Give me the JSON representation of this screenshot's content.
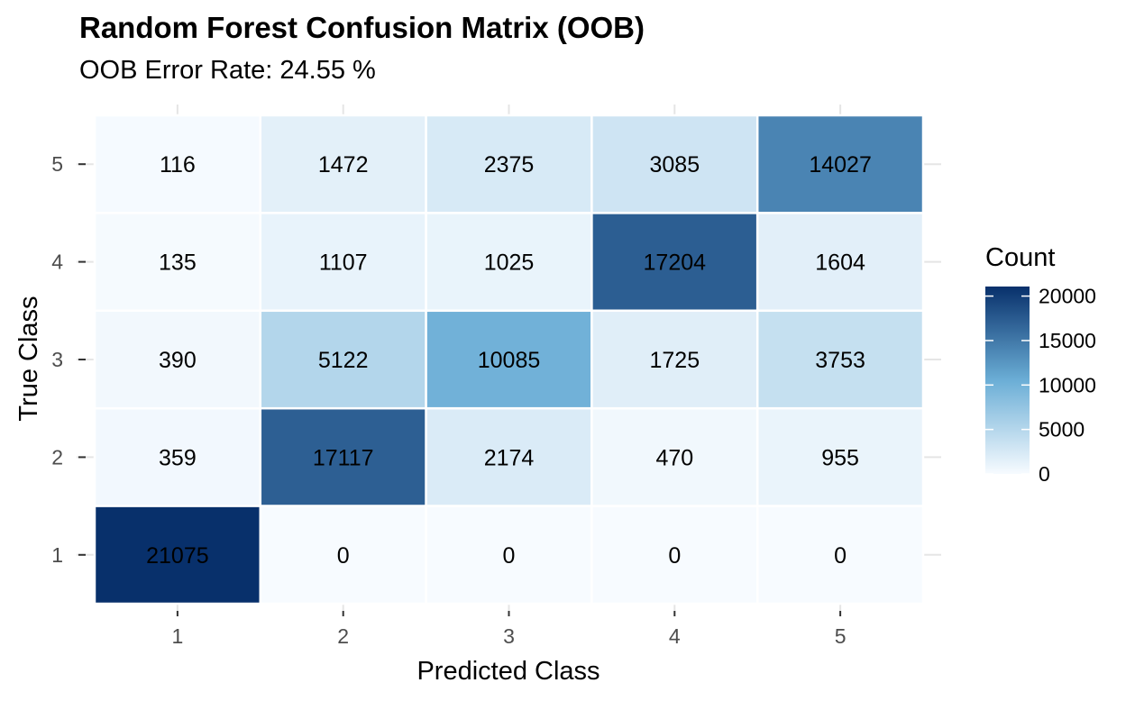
{
  "chart_data": {
    "type": "heatmap",
    "title": "Random Forest Confusion Matrix (OOB)",
    "subtitle": "OOB Error Rate: 24.55 %",
    "xlabel": "Predicted Class",
    "ylabel": "True Class",
    "x_categories": [
      "1",
      "2",
      "3",
      "4",
      "5"
    ],
    "y_categories": [
      "1",
      "2",
      "3",
      "4",
      "5"
    ],
    "cells": [
      {
        "true": "5",
        "predicted": "1",
        "value": 116
      },
      {
        "true": "5",
        "predicted": "2",
        "value": 1472
      },
      {
        "true": "5",
        "predicted": "3",
        "value": 2375
      },
      {
        "true": "5",
        "predicted": "4",
        "value": 3085
      },
      {
        "true": "5",
        "predicted": "5",
        "value": 14027
      },
      {
        "true": "4",
        "predicted": "1",
        "value": 135
      },
      {
        "true": "4",
        "predicted": "2",
        "value": 1107
      },
      {
        "true": "4",
        "predicted": "3",
        "value": 1025
      },
      {
        "true": "4",
        "predicted": "4",
        "value": 17204
      },
      {
        "true": "4",
        "predicted": "5",
        "value": 1604
      },
      {
        "true": "3",
        "predicted": "1",
        "value": 390
      },
      {
        "true": "3",
        "predicted": "2",
        "value": 5122
      },
      {
        "true": "3",
        "predicted": "3",
        "value": 10085
      },
      {
        "true": "3",
        "predicted": "4",
        "value": 1725
      },
      {
        "true": "3",
        "predicted": "5",
        "value": 3753
      },
      {
        "true": "2",
        "predicted": "1",
        "value": 359
      },
      {
        "true": "2",
        "predicted": "2",
        "value": 17117
      },
      {
        "true": "2",
        "predicted": "3",
        "value": 2174
      },
      {
        "true": "2",
        "predicted": "4",
        "value": 470
      },
      {
        "true": "2",
        "predicted": "5",
        "value": 955
      },
      {
        "true": "1",
        "predicted": "1",
        "value": 21075
      },
      {
        "true": "1",
        "predicted": "2",
        "value": 0
      },
      {
        "true": "1",
        "predicted": "3",
        "value": 0
      },
      {
        "true": "1",
        "predicted": "4",
        "value": 0
      },
      {
        "true": "1",
        "predicted": "5",
        "value": 0
      }
    ],
    "legend": {
      "title": "Count",
      "ticks": [
        0,
        5000,
        10000,
        15000,
        20000
      ],
      "range": [
        0,
        21075
      ],
      "low_color": "#f7fbff",
      "mid_color": "#6baed6",
      "high_color": "#08306b"
    },
    "grid": true
  }
}
